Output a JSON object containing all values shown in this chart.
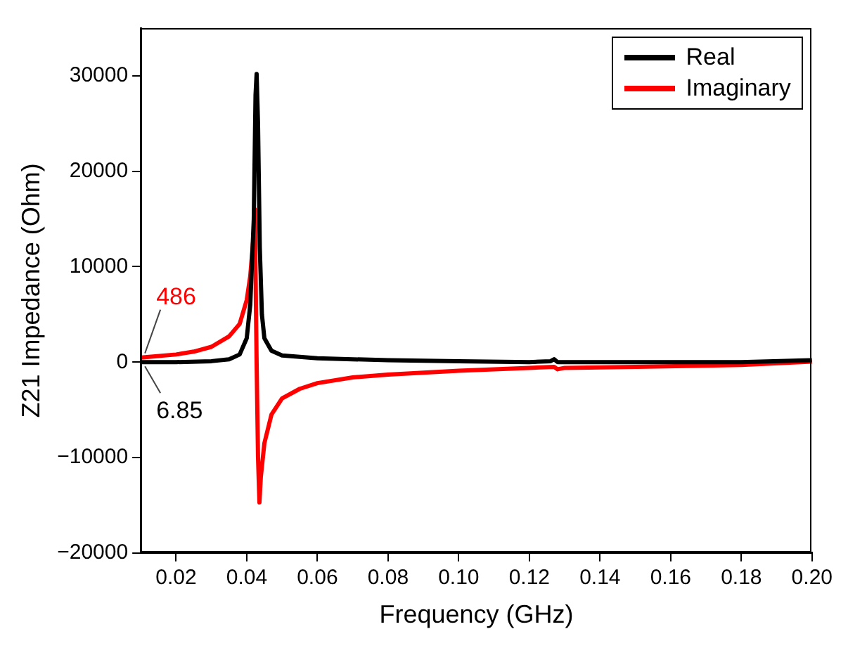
{
  "chart_data": {
    "type": "line",
    "xlabel": "Frequency (GHz)",
    "ylabel": "Z21 Impedance (Ohm)",
    "xlim": [
      0.01,
      0.2
    ],
    "xticks": [
      0.02,
      0.04,
      0.06,
      0.08,
      {
        "value": 0.1,
        "label": "0.10"
      },
      0.12,
      0.14,
      0.16,
      0.18,
      {
        "value": 0.2,
        "label": "0.20"
      }
    ],
    "ylim": [
      -20000,
      35000
    ],
    "yticks": [
      {
        "value": -20000,
        "label": "−20000"
      },
      {
        "value": -10000,
        "label": "−10000"
      },
      0,
      10000,
      20000,
      30000
    ],
    "grid": false,
    "legend": "top right",
    "marker": "none",
    "line_style": "solid",
    "annotations": [
      {
        "text": "486",
        "x": 0.01,
        "y": 486
      },
      {
        "text": "6.85",
        "x": 0.01,
        "y": 6.85
      }
    ],
    "series": [
      {
        "name": "Real",
        "color": "#000000",
        "x": [
          0.01,
          0.02,
          0.03,
          0.035,
          0.038,
          0.04,
          0.041,
          0.042,
          0.0425,
          0.0428,
          0.0432,
          0.0437,
          0.0443,
          0.045,
          0.047,
          0.05,
          0.06,
          0.08,
          0.1,
          0.12,
          0.126,
          0.127,
          0.128,
          0.15,
          0.18,
          0.2
        ],
        "values": [
          6.85,
          0,
          100,
          300,
          800,
          2500,
          6000,
          15000,
          28000,
          30200,
          25000,
          12000,
          5000,
          2500,
          1200,
          700,
          400,
          200,
          100,
          0,
          100,
          300,
          0,
          0,
          0,
          200
        ]
      },
      {
        "name": "Imaginary",
        "color": "#ff0000",
        "x": [
          0.01,
          0.02,
          0.025,
          0.03,
          0.035,
          0.038,
          0.04,
          0.041,
          0.042,
          0.0423,
          0.0428,
          0.0432,
          0.0436,
          0.044,
          0.045,
          0.047,
          0.05,
          0.055,
          0.06,
          0.07,
          0.08,
          0.1,
          0.12,
          0.127,
          0.128,
          0.13,
          0.15,
          0.18,
          0.2
        ],
        "values": [
          486,
          800,
          1100,
          1600,
          2700,
          4000,
          6500,
          9000,
          13500,
          16000,
          0,
          -10000,
          -14700,
          -12000,
          -8500,
          -5500,
          -3800,
          -2800,
          -2200,
          -1600,
          -1300,
          -900,
          -600,
          -500,
          -750,
          -600,
          -500,
          -300,
          50
        ]
      }
    ]
  }
}
